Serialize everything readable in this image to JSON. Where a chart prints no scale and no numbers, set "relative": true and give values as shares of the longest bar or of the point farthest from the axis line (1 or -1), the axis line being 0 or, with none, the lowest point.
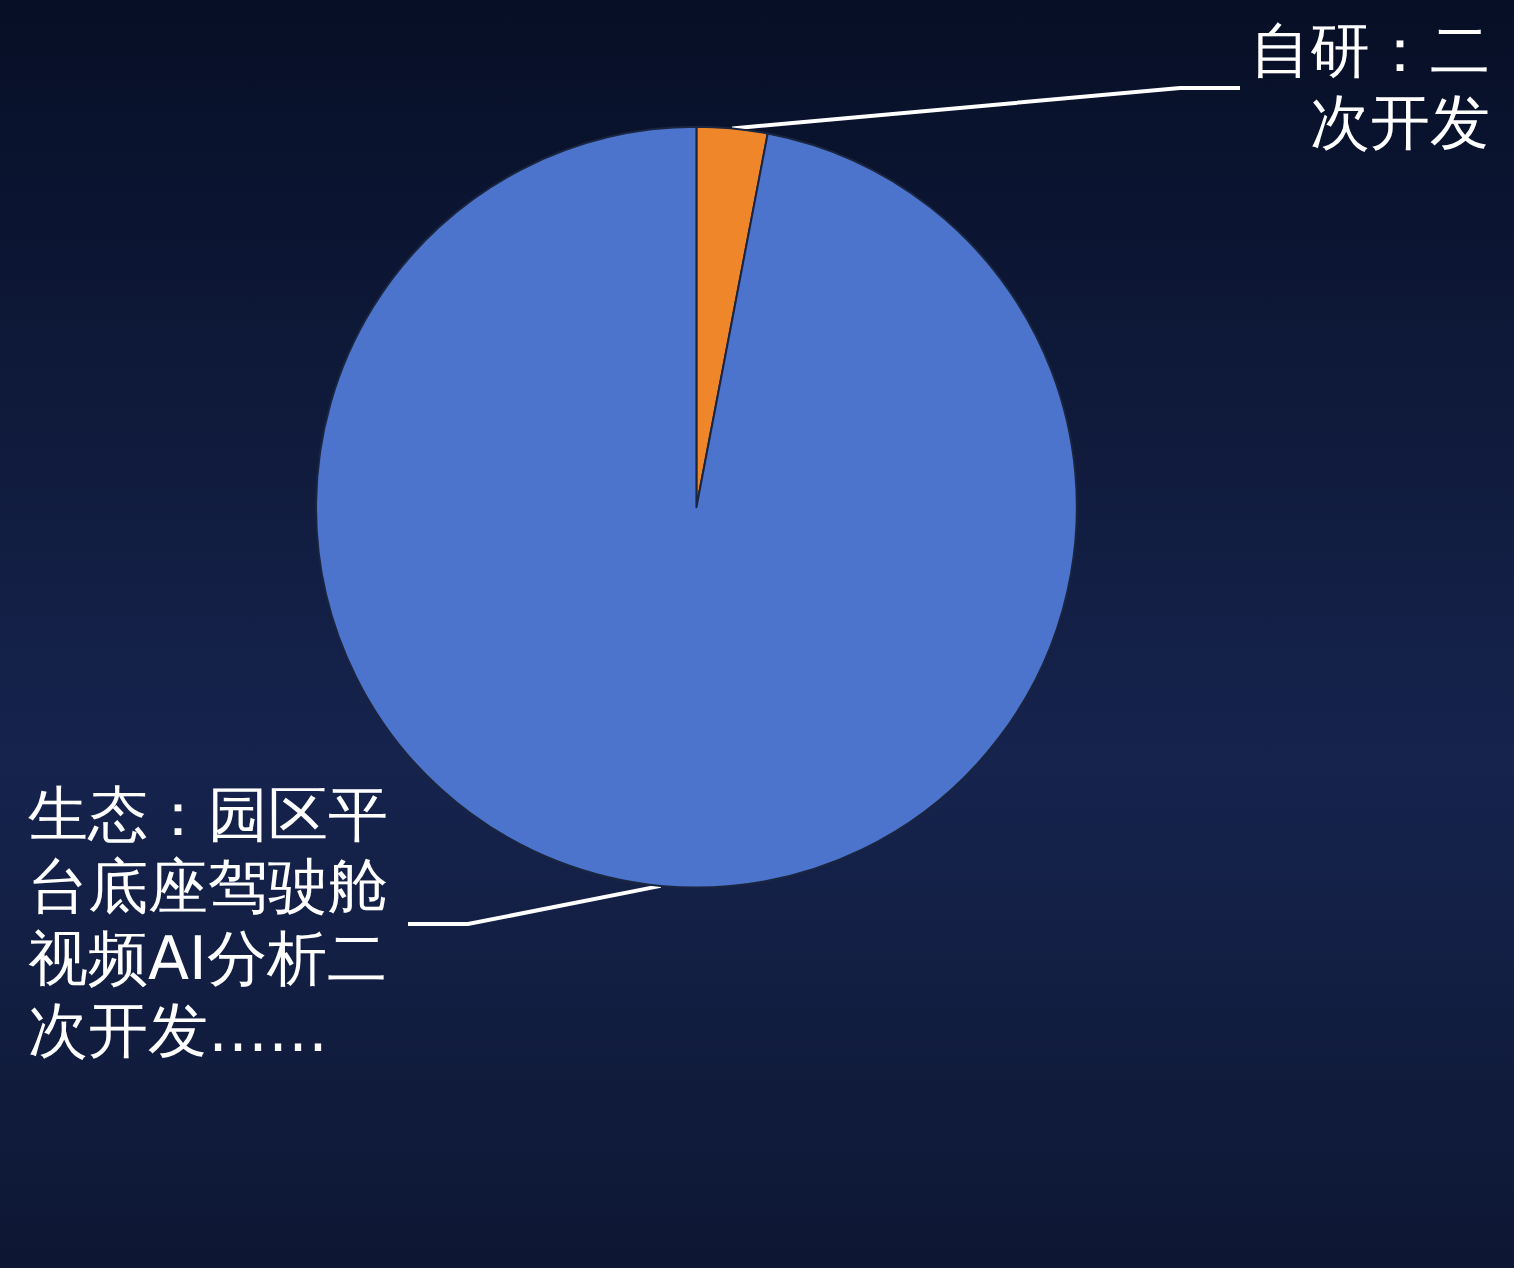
{
  "chart_data": {
    "type": "pie",
    "relative": true,
    "categories": [
      "自研：二次开发",
      "生态：园区平台底座驾驶舱视频AI分析二次开发……"
    ],
    "values": [
      3,
      97
    ],
    "colors": [
      "#f0862a",
      "#4d74cc"
    ],
    "legend": false
  }
}
